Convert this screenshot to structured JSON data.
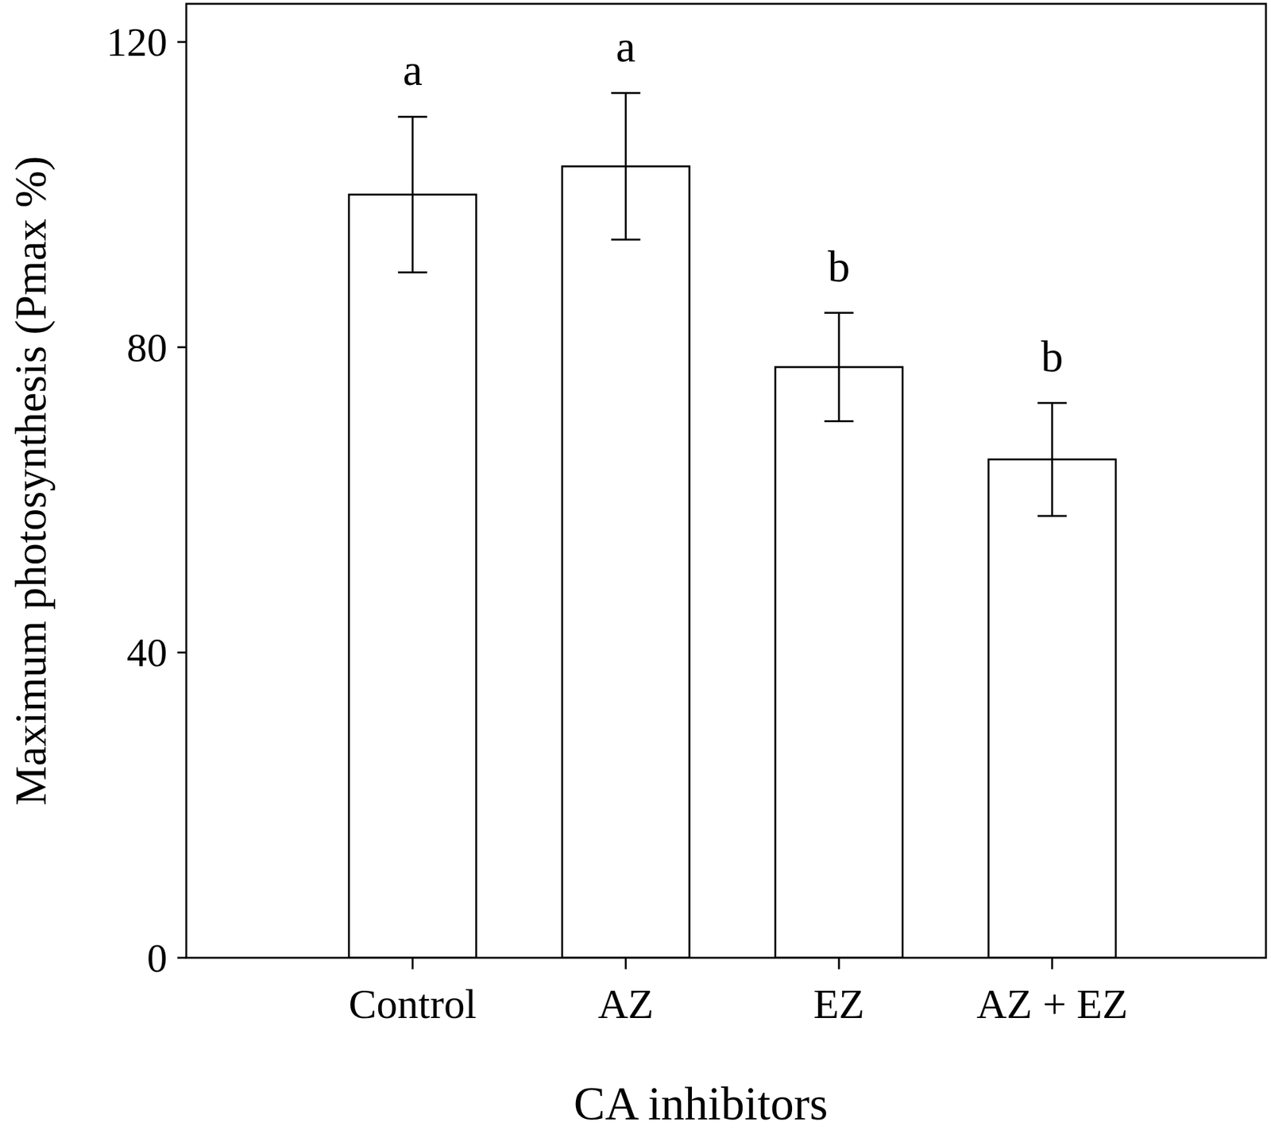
{
  "chart_data": {
    "type": "bar",
    "x_label": "CA inhibitors",
    "y_label": "Maximum photosynthesis (Pmax %)",
    "categories": [
      "Control",
      "AZ",
      "EZ",
      "AZ + EZ"
    ],
    "values": [
      100,
      103.7,
      77.4,
      65.3
    ],
    "errors": [
      10.2,
      9.6,
      7.1,
      7.4
    ],
    "letters": [
      "a",
      "a",
      "b",
      "b"
    ],
    "color": "#ffffff",
    "ylim": [
      0,
      125
    ],
    "yticks": [
      0,
      40,
      80,
      120
    ],
    "grid": false
  }
}
